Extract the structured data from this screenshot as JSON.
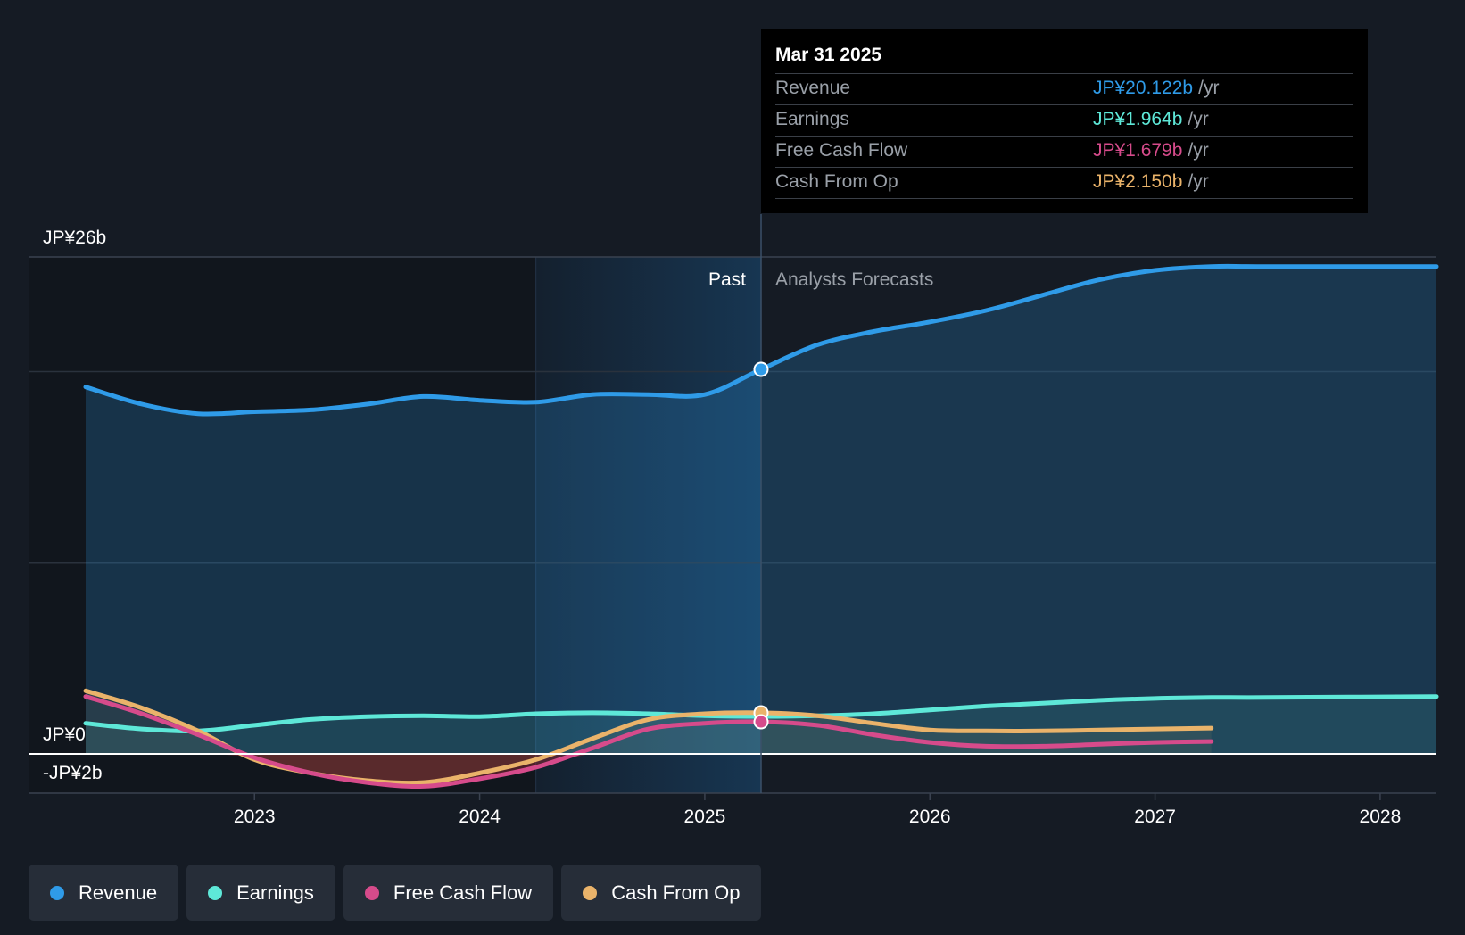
{
  "colors": {
    "revenue": "#2f9be8",
    "earnings": "#5ee8d8",
    "fcf": "#d64b8b",
    "cfo": "#eab36a",
    "background": "#151b24"
  },
  "tooltip": {
    "date": "Mar 31 2025",
    "rows": [
      {
        "label": "Revenue",
        "value": "JP¥20.122b",
        "unit": "/yr"
      },
      {
        "label": "Earnings",
        "value": "JP¥1.964b",
        "unit": "/yr"
      },
      {
        "label": "Free Cash Flow",
        "value": "JP¥1.679b",
        "unit": "/yr"
      },
      {
        "label": "Cash From Op",
        "value": "JP¥2.150b",
        "unit": "/yr"
      }
    ]
  },
  "legend": [
    {
      "label": "Revenue",
      "color_key": "revenue"
    },
    {
      "label": "Earnings",
      "color_key": "earnings"
    },
    {
      "label": "Free Cash Flow",
      "color_key": "fcf"
    },
    {
      "label": "Cash From Op",
      "color_key": "cfo"
    }
  ],
  "chart_data": {
    "type": "line",
    "title": "",
    "xlabel": "",
    "ylabel": "",
    "xlim": [
      2022.25,
      2028.25
    ],
    "ylim": [
      -2,
      26
    ],
    "y_tick_labels": [
      {
        "value": 26,
        "label": "JP¥26b"
      },
      {
        "value": 0,
        "label": "JP¥0"
      },
      {
        "value": -2,
        "label": "-JP¥2b"
      }
    ],
    "gridlines": [
      26,
      20,
      10,
      0
    ],
    "x_ticks": [
      {
        "value": 2023,
        "label": "2023"
      },
      {
        "value": 2024,
        "label": "2024"
      },
      {
        "value": 2025,
        "label": "2025"
      },
      {
        "value": 2026,
        "label": "2026"
      },
      {
        "value": 2027,
        "label": "2027"
      },
      {
        "value": 2028,
        "label": "2028"
      }
    ],
    "past_label": "Past",
    "forecast_label": "Analysts Forecasts",
    "divider_x": 2025.25,
    "highlight_start": 2024.25,
    "series": [
      {
        "name": "Revenue",
        "color_key": "revenue",
        "x": [
          2022.25,
          2022.5,
          2022.75,
          2023.0,
          2023.25,
          2023.5,
          2023.75,
          2024.0,
          2024.25,
          2024.5,
          2024.75,
          2025.0,
          2025.25,
          2025.5,
          2025.75,
          2026.0,
          2026.25,
          2026.5,
          2026.75,
          2027.0,
          2027.25,
          2027.5,
          2028.25
        ],
        "y": [
          19.2,
          18.3,
          17.8,
          17.9,
          18.0,
          18.3,
          18.7,
          18.5,
          18.4,
          18.8,
          18.8,
          18.8,
          20.12,
          21.4,
          22.1,
          22.6,
          23.2,
          24.0,
          24.8,
          25.3,
          25.5,
          25.5,
          25.5
        ]
      },
      {
        "name": "Earnings",
        "color_key": "earnings",
        "x": [
          2022.25,
          2022.5,
          2022.75,
          2023.0,
          2023.25,
          2023.5,
          2023.75,
          2024.0,
          2024.25,
          2024.5,
          2024.75,
          2025.0,
          2025.25,
          2025.5,
          2025.75,
          2026.0,
          2026.25,
          2026.5,
          2026.75,
          2027.0,
          2027.25,
          2027.5,
          2028.25
        ],
        "y": [
          1.6,
          1.3,
          1.2,
          1.5,
          1.8,
          1.95,
          2.0,
          1.95,
          2.1,
          2.15,
          2.1,
          2.0,
          1.96,
          2.0,
          2.1,
          2.3,
          2.5,
          2.65,
          2.8,
          2.9,
          2.95,
          2.95,
          3.0
        ]
      },
      {
        "name": "Free Cash Flow",
        "color_key": "fcf",
        "x": [
          2022.25,
          2022.5,
          2022.75,
          2023.0,
          2023.25,
          2023.5,
          2023.75,
          2024.0,
          2024.25,
          2024.5,
          2024.75,
          2025.0,
          2025.25,
          2025.5,
          2025.75,
          2026.0,
          2026.25,
          2026.5,
          2026.75,
          2027.0,
          2027.25
        ],
        "y": [
          3.0,
          2.1,
          1.0,
          -0.2,
          -1.0,
          -1.5,
          -1.7,
          -1.3,
          -0.7,
          0.3,
          1.3,
          1.6,
          1.68,
          1.5,
          1.0,
          0.6,
          0.4,
          0.4,
          0.5,
          0.6,
          0.65
        ]
      },
      {
        "name": "Cash From Op",
        "color_key": "cfo",
        "x": [
          2022.25,
          2022.5,
          2022.75,
          2023.0,
          2023.25,
          2023.5,
          2023.75,
          2024.0,
          2024.25,
          2024.5,
          2024.75,
          2025.0,
          2025.25,
          2025.5,
          2025.75,
          2026.0,
          2026.25,
          2026.5,
          2026.75,
          2027.0,
          2027.25
        ],
        "y": [
          3.3,
          2.4,
          1.2,
          -0.3,
          -1.0,
          -1.4,
          -1.5,
          -1.0,
          -0.3,
          0.8,
          1.8,
          2.1,
          2.15,
          2.0,
          1.6,
          1.25,
          1.2,
          1.2,
          1.25,
          1.3,
          1.35
        ]
      }
    ],
    "highlight_point_x": 2025.25
  }
}
